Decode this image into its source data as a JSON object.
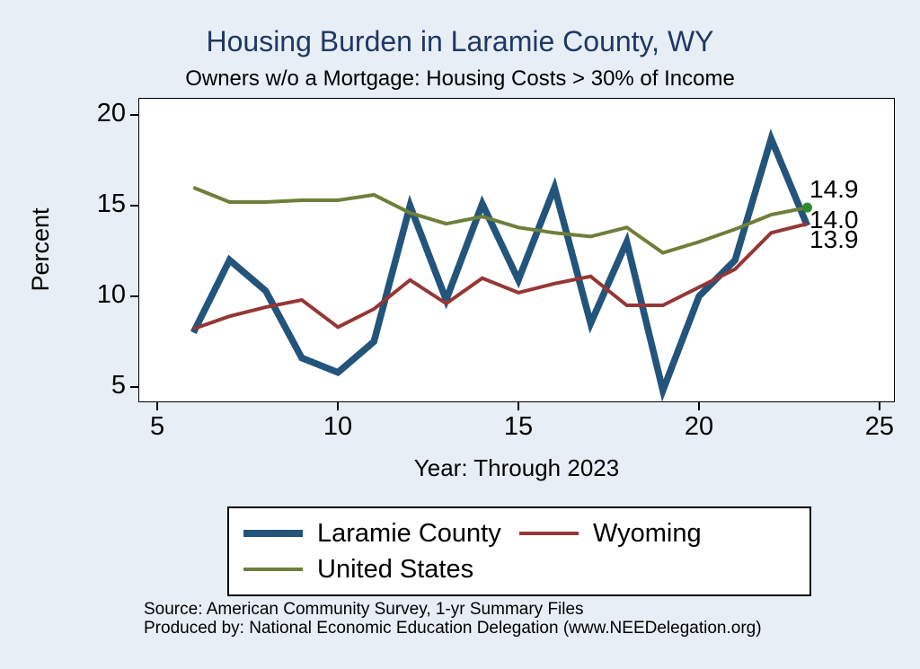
{
  "page_background": "#e8eef6",
  "chart_data": {
    "type": "line",
    "title": "Housing Burden in Laramie County, WY",
    "subtitle": "Owners w/o a Mortgage: Housing Costs > 30% of Income",
    "xlabel": "Year: Through 2023",
    "ylabel": "Percent",
    "title_color": "#1f3864",
    "grid": false,
    "legend_position": "bottom",
    "x": [
      6,
      7,
      8,
      9,
      10,
      11,
      12,
      13,
      14,
      15,
      16,
      17,
      18,
      19,
      20,
      21,
      22,
      23
    ],
    "series": [
      {
        "name": "Laramie County",
        "color": "#23547c",
        "line_width": 7.5,
        "values": [
          8.0,
          12.0,
          10.3,
          6.6,
          5.8,
          7.5,
          15.0,
          9.8,
          15.1,
          10.9,
          16.0,
          8.5,
          13.0,
          4.8,
          10.0,
          12.0,
          18.7,
          13.9
        ]
      },
      {
        "name": "Wyoming",
        "color": "#953735",
        "line_width": 4,
        "values": [
          8.2,
          8.9,
          9.4,
          9.8,
          8.3,
          9.3,
          10.9,
          9.6,
          11.0,
          10.2,
          10.7,
          11.1,
          9.5,
          9.5,
          10.5,
          11.5,
          13.5,
          14.0
        ]
      },
      {
        "name": "United States",
        "color": "#6e7f3a",
        "line_width": 4,
        "end_dot_color": "#2e8b2e",
        "values": [
          16.0,
          15.2,
          15.2,
          15.3,
          15.3,
          15.6,
          14.6,
          14.0,
          14.4,
          13.8,
          13.5,
          13.3,
          13.8,
          12.4,
          13.0,
          13.7,
          14.5,
          14.9
        ]
      }
    ],
    "xticks": [
      5,
      10,
      15,
      20,
      25
    ],
    "yticks": [
      5,
      10,
      15,
      20
    ],
    "xlim": [
      4.5,
      25.4
    ],
    "ylim": [
      4.2,
      20.9
    ],
    "end_labels": [
      {
        "text": "14.9",
        "anchor": 15.85
      },
      {
        "text": "14.0",
        "anchor": 14.15
      },
      {
        "text": "13.9",
        "anchor": 13.05
      }
    ]
  },
  "footer": {
    "source": "Source: American Community Survey, 1-yr Summary Files",
    "produced": "Produced by: National Economic Education Delegation (www.NEEDelegation.org)"
  }
}
